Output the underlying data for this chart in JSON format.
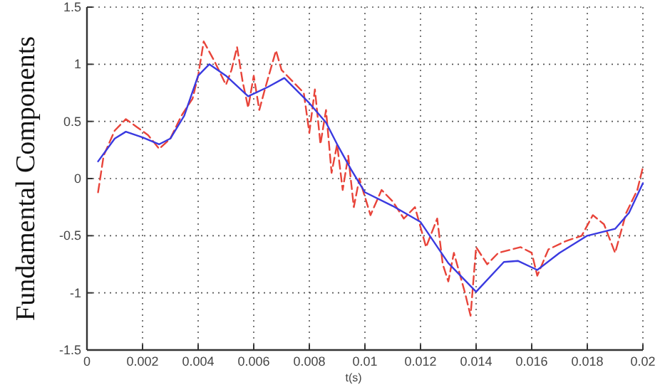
{
  "chart_data": {
    "type": "line",
    "xlabel": "t(s)",
    "ylabel": "Fundamental Components",
    "xlim": [
      0,
      0.02
    ],
    "xticks": [
      0,
      0.002,
      0.004,
      0.006,
      0.008,
      0.01,
      0.012,
      0.014,
      0.016,
      0.018,
      0.02
    ],
    "ylim": [
      -1.5,
      1.5
    ],
    "yticks": [
      -1.5,
      -1,
      -0.5,
      0,
      0.5,
      1,
      1.5
    ],
    "grid": true,
    "marker": "none",
    "series": [
      {
        "color": "#e8443a",
        "line_style": "dashed",
        "x": [
          0.0004,
          0.0006,
          0.001,
          0.0014,
          0.0018,
          0.0022,
          0.0026,
          0.003,
          0.0034,
          0.0038,
          0.004,
          0.0042,
          0.0046,
          0.005,
          0.0052,
          0.0054,
          0.0056,
          0.0058,
          0.006,
          0.0062,
          0.0064,
          0.0068,
          0.007,
          0.0074,
          0.0078,
          0.008,
          0.0082,
          0.0084,
          0.0086,
          0.0088,
          0.009,
          0.0092,
          0.0094,
          0.0096,
          0.0098,
          0.0102,
          0.0106,
          0.011,
          0.0114,
          0.0118,
          0.0122,
          0.0126,
          0.0128,
          0.013,
          0.0132,
          0.0136,
          0.0138,
          0.014,
          0.0144,
          0.0148,
          0.0156,
          0.016,
          0.0162,
          0.0166,
          0.0172,
          0.0178,
          0.0182,
          0.0186,
          0.019,
          0.0194,
          0.0198,
          0.02
        ],
        "values": [
          -0.12,
          0.2,
          0.42,
          0.52,
          0.45,
          0.38,
          0.26,
          0.35,
          0.55,
          0.7,
          0.9,
          1.2,
          1.02,
          0.82,
          0.95,
          1.15,
          0.85,
          0.62,
          0.9,
          0.6,
          0.78,
          1.12,
          0.95,
          0.85,
          0.75,
          0.4,
          0.78,
          0.3,
          0.6,
          0.05,
          0.3,
          -0.1,
          0.2,
          -0.25,
          0,
          -0.32,
          -0.1,
          -0.2,
          -0.35,
          -0.25,
          -0.6,
          -0.35,
          -0.75,
          -0.9,
          -0.65,
          -1,
          -1.2,
          -0.6,
          -0.75,
          -0.65,
          -0.6,
          -0.65,
          -0.85,
          -0.62,
          -0.55,
          -0.5,
          -0.32,
          -0.4,
          -0.65,
          -0.3,
          -0.1,
          0.1
        ]
      },
      {
        "color": "#3a3ae0",
        "line_style": "solid",
        "x": [
          0.0004,
          0.001,
          0.0014,
          0.002,
          0.0026,
          0.003,
          0.0035,
          0.004,
          0.0044,
          0.005,
          0.0058,
          0.0065,
          0.0071,
          0.008,
          0.0086,
          0.009,
          0.0095,
          0.01,
          0.011,
          0.012,
          0.013,
          0.014,
          0.015,
          0.0155,
          0.0162,
          0.017,
          0.018,
          0.019,
          0.0195,
          0.02
        ],
        "values": [
          0.15,
          0.35,
          0.41,
          0.36,
          0.3,
          0.35,
          0.55,
          0.9,
          1.0,
          0.9,
          0.72,
          0.8,
          0.88,
          0.66,
          0.49,
          0.3,
          0.08,
          -0.12,
          -0.24,
          -0.38,
          -0.74,
          -0.99,
          -0.73,
          -0.72,
          -0.8,
          -0.65,
          -0.5,
          -0.44,
          -0.3,
          -0.04
        ]
      }
    ]
  }
}
